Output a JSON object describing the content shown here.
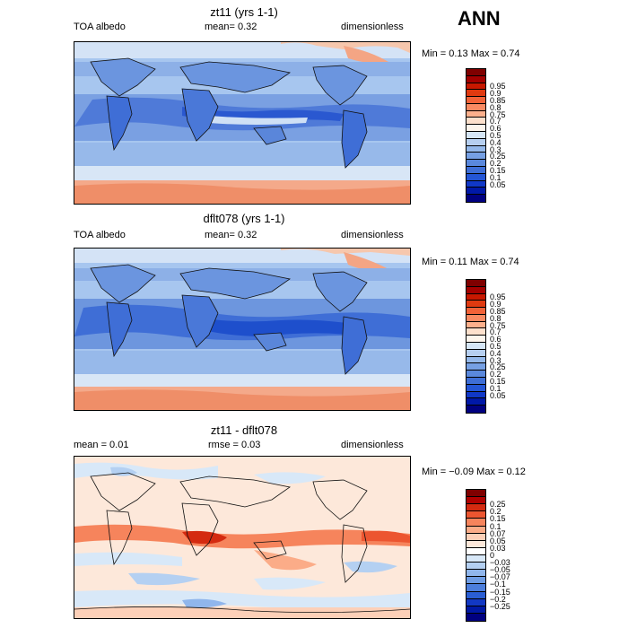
{
  "season": "ANN",
  "panels": [
    {
      "title": "zt11 (yrs 1-1)",
      "left": "TOA albedo",
      "mean": "mean=    0.32",
      "rmse": "",
      "units": "dimensionless",
      "minmax": "Min =    0.13  Max =    0.74",
      "colors": [
        "#7f0000",
        "#a40000",
        "#c81800",
        "#e03a10",
        "#f26238",
        "#f98a62",
        "#fdb08c",
        "#fde0cc",
        "#fdf5ec",
        "#d6e6f6",
        "#b6cff0",
        "#94b8ea",
        "#76a0e4",
        "#5a88dc",
        "#3e6ed6",
        "#2456d6",
        "#1038c8",
        "#0018a8",
        "#000080"
      ],
      "labels": [
        "0.95",
        "0.9",
        "0.85",
        "0.8",
        "0.75",
        "0.7",
        "0.6",
        "0.5",
        "0.4",
        "0.3",
        "0.25",
        "0.2",
        "0.15",
        "0.1",
        "0.05"
      ]
    },
    {
      "title": "dflt078 (yrs 1-1)",
      "left": "TOA albedo",
      "mean": "mean=    0.32",
      "rmse": "",
      "units": "dimensionless",
      "minmax": "Min =    0.11  Max =    0.74",
      "colors": [
        "#7f0000",
        "#a40000",
        "#c81800",
        "#e03a10",
        "#f26238",
        "#f98a62",
        "#fdb08c",
        "#fde0cc",
        "#fdf5ec",
        "#d6e6f6",
        "#b6cff0",
        "#94b8ea",
        "#76a0e4",
        "#5a88dc",
        "#3e6ed6",
        "#2456d6",
        "#1038c8",
        "#0018a8",
        "#000080"
      ],
      "labels": [
        "0.95",
        "0.9",
        "0.85",
        "0.8",
        "0.75",
        "0.7",
        "0.6",
        "0.5",
        "0.4",
        "0.3",
        "0.25",
        "0.2",
        "0.15",
        "0.1",
        "0.05"
      ]
    },
    {
      "title": "zt11 - dflt078",
      "left": "mean =    0.01",
      "mean": "",
      "rmse": "rmse =    0.03",
      "units": "dimensionless",
      "minmax": "Min =   −0.09  Max =    0.12",
      "colors": [
        "#7f0000",
        "#b00000",
        "#d42a10",
        "#ec5530",
        "#f6845c",
        "#fbac88",
        "#fdd0b8",
        "#fde8da",
        "#ffffff",
        "#d8e8f8",
        "#b4d0f2",
        "#90b6ec",
        "#6e9ce4",
        "#4c7edc",
        "#2a5ed4",
        "#1238c4",
        "#0018a4",
        "#000080"
      ],
      "labels": [
        "0.25",
        "0.2",
        "0.15",
        "0.1",
        "0.07",
        "0.05",
        "0.03",
        "0",
        "−0.03",
        "−0.05",
        "−0.07",
        "−0.1",
        "−0.15",
        "−0.2",
        "−0.25"
      ]
    }
  ]
}
